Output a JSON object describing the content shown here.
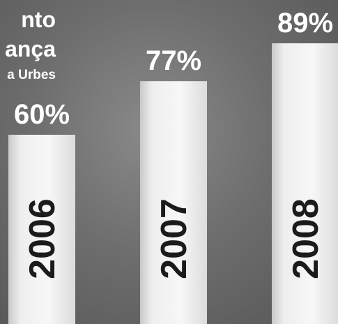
{
  "title": {
    "line1": "nto",
    "line2": "ança",
    "line3": "a Urbes"
  },
  "chart_data": {
    "type": "bar",
    "categories": [
      "2006",
      "2007",
      "2008"
    ],
    "values": [
      60,
      77,
      89
    ],
    "data_labels": [
      "60%",
      "77%",
      "89%"
    ],
    "ylim": [
      0,
      100
    ],
    "colors": {
      "bar": "#f2f2f2",
      "category_label": "#1b1b1b",
      "value_label": "#ffffff"
    }
  }
}
